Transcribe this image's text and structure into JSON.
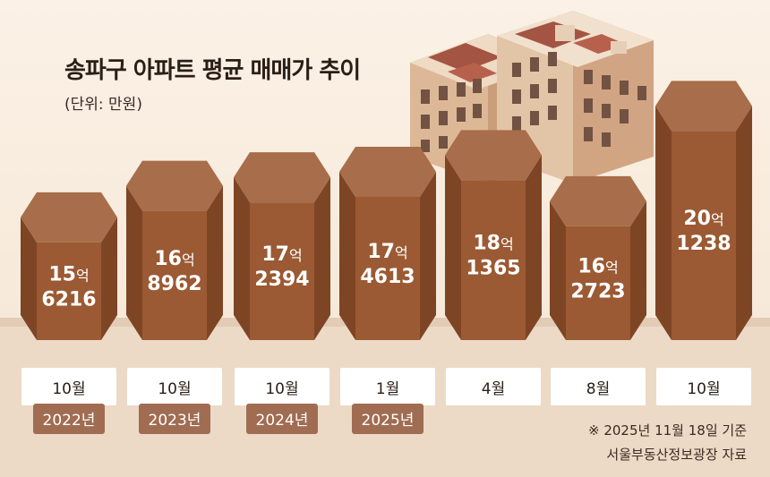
{
  "title": "송파구 아파트 평균 매매가 추이",
  "unit_label": "(단위: 만원)",
  "notes": {
    "basis": "※ 2025년 11월 18일 기준",
    "source": "서울부동산정보광장 자료"
  },
  "colors": {
    "pillar_front": "#9b5a33",
    "pillar_side": "#7e4525",
    "pillar_top": "#a86d4a",
    "value_text": "#ffffff",
    "year_badge": "#a06c52",
    "year_badge_text": "#ffffff",
    "month_box": "#ffffff",
    "ground": "#e9d6c2"
  },
  "icons": {
    "illustration": "apartment-building-illustration"
  },
  "chart_data": {
    "type": "bar",
    "title": "송파구 아파트 평균 매매가 추이",
    "unit": "만원",
    "categories": [
      "2022년 10월",
      "2023년 10월",
      "2024년 10월",
      "2025년 1월",
      "2025년 4월",
      "2025년 8월",
      "2025년 10월"
    ],
    "values": [
      156216,
      168962,
      172394,
      174613,
      181365,
      162723,
      201238
    ],
    "bars": [
      {
        "month": "10월",
        "year": "2022년",
        "value": 156216,
        "label_eok": "15",
        "label_man": "6216",
        "eok_suffix": "억"
      },
      {
        "month": "10월",
        "year": "2023년",
        "value": 168962,
        "label_eok": "16",
        "label_man": "8962",
        "eok_suffix": "억"
      },
      {
        "month": "10월",
        "year": "2024년",
        "value": 172394,
        "label_eok": "17",
        "label_man": "2394",
        "eok_suffix": "억"
      },
      {
        "month": "1월",
        "year": "2025년",
        "value": 174613,
        "label_eok": "17",
        "label_man": "4613",
        "eok_suffix": "억"
      },
      {
        "month": "4월",
        "year": "",
        "value": 181365,
        "label_eok": "18",
        "label_man": "1365",
        "eok_suffix": "억"
      },
      {
        "month": "8월",
        "year": "",
        "value": 162723,
        "label_eok": "16",
        "label_man": "2723",
        "eok_suffix": "억"
      },
      {
        "month": "10월",
        "year": "",
        "value": 201238,
        "label_eok": "20",
        "label_man": "1238",
        "eok_suffix": "억"
      }
    ],
    "xlabel": "",
    "ylabel": "",
    "grid": false,
    "legend": "none"
  }
}
